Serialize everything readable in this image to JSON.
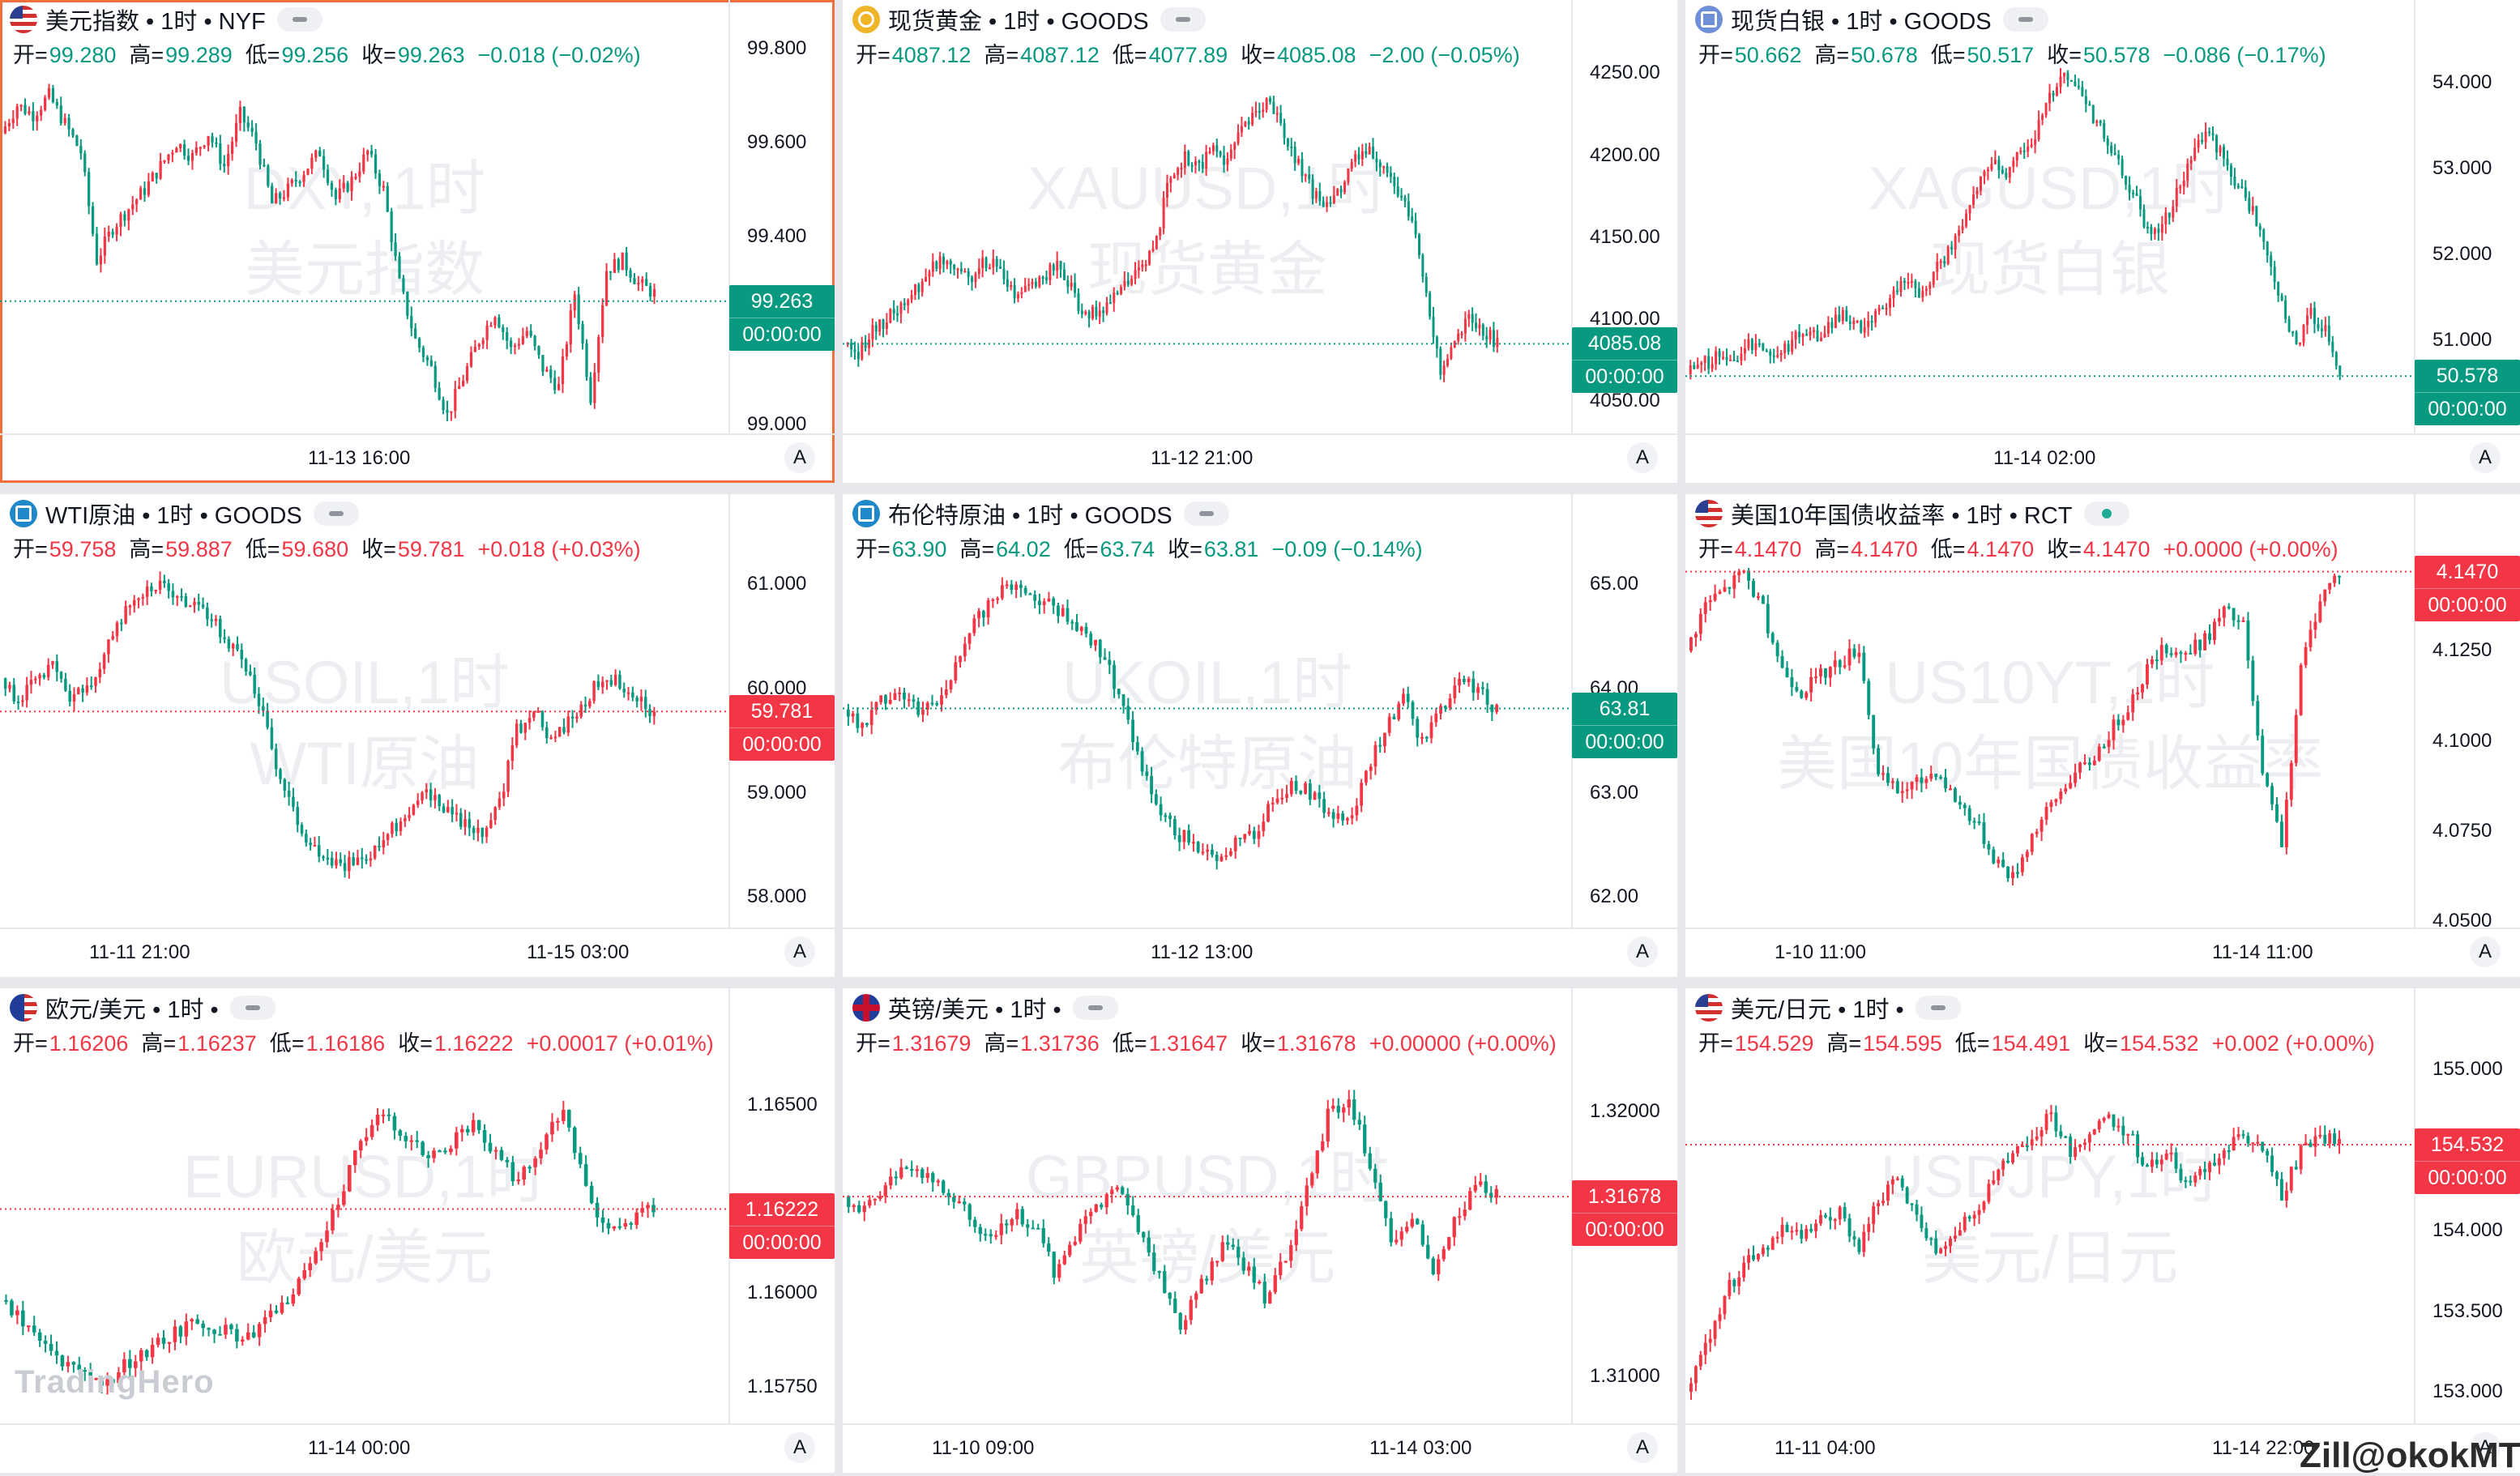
{
  "colors": {
    "up": "#f23645",
    "down": "#089981",
    "text": "#131722",
    "accent": "#f0703b"
  },
  "labels": {
    "open": "开=",
    "high": "高=",
    "low": "低=",
    "close": "收=",
    "reset_axis": "A"
  },
  "logo": "TradingHero",
  "credit": "Zill@okokMT",
  "panels": [
    {
      "id": "dxy",
      "active": true,
      "title": "美元指数 • 1时 • NYF",
      "icon": "flag-us",
      "status": "dash",
      "open": "99.280",
      "high": "99.289",
      "low": "99.256",
      "close": "99.263",
      "change": "−0.018 (−0.02%)",
      "dir": "down",
      "watermark": [
        "DXY, 1时",
        "美元指数"
      ],
      "y_ticks": [
        "99.800",
        "99.600",
        "99.400",
        "99.000"
      ],
      "y_tick_values": [
        99.8,
        99.6,
        99.4,
        99.0
      ],
      "y_range": [
        98.98,
        99.8
      ],
      "price_badge": "99.263",
      "countdown": "00:00:00",
      "x_labels": [
        "11-13 16:00"
      ],
      "path": [
        99.62,
        99.68,
        99.66,
        99.7,
        99.64,
        99.58,
        99.35,
        99.42,
        99.46,
        99.5,
        99.55,
        99.6,
        99.57,
        99.62,
        99.55,
        99.66,
        99.6,
        99.47,
        99.5,
        99.54,
        99.58,
        99.48,
        99.52,
        99.58,
        99.5,
        99.3,
        99.18,
        99.12,
        99.02,
        99.1,
        99.18,
        99.24,
        99.16,
        99.2,
        99.12,
        99.08,
        99.28,
        99.06,
        99.33,
        99.35,
        99.3,
        99.28
      ]
    },
    {
      "id": "xau",
      "active": false,
      "title": "现货黄金 • 1时 • GOODS",
      "icon": "gold",
      "status": "dash",
      "open": "4087.12",
      "high": "4087.12",
      "low": "4077.89",
      "close": "4085.08",
      "change": "−2.00 (−0.05%)",
      "dir": "down",
      "watermark": [
        "XAUUSD,1时",
        "现货黄金"
      ],
      "y_ticks": [
        "4250.00",
        "4200.00",
        "4150.00",
        "4100.00",
        "4050.00"
      ],
      "y_tick_values": [
        4250,
        4200,
        4150,
        4100,
        4050
      ],
      "y_range": [
        4030,
        4265
      ],
      "price_badge": "4085.08",
      "countdown": "00:00:00",
      "x_labels": [
        "11-12 21:00"
      ],
      "path": [
        4085,
        4080,
        4092,
        4100,
        4108,
        4118,
        4130,
        4138,
        4132,
        4126,
        4136,
        4130,
        4112,
        4120,
        4126,
        4134,
        4118,
        4100,
        4106,
        4112,
        4124,
        4130,
        4150,
        4190,
        4198,
        4192,
        4205,
        4196,
        4214,
        4224,
        4236,
        4210,
        4196,
        4176,
        4168,
        4180,
        4196,
        4202,
        4194,
        4176,
        4160,
        4118,
        4066,
        4084,
        4100,
        4092,
        4086
      ]
    },
    {
      "id": "xag",
      "active": false,
      "title": "现货白银 • 1时 • GOODS",
      "icon": "silver",
      "status": "dash",
      "open": "50.662",
      "high": "50.678",
      "low": "50.517",
      "close": "50.578",
      "change": "−0.086 (−0.17%)",
      "dir": "down",
      "watermark": [
        "XAGUSD,1时",
        "现货白银"
      ],
      "y_ticks": [
        "54.000",
        "53.000",
        "52.000",
        "51.000"
      ],
      "y_tick_values": [
        54,
        53,
        52,
        51
      ],
      "y_range": [
        49.9,
        54.4
      ],
      "price_badge": "50.578",
      "countdown": "00:00:00",
      "x_labels": [
        "11-14 02:00"
      ],
      "path": [
        50.6,
        50.7,
        50.8,
        50.75,
        50.9,
        51.0,
        50.8,
        50.95,
        51.1,
        51.05,
        51.2,
        51.3,
        51.1,
        51.25,
        51.5,
        51.7,
        51.5,
        51.8,
        52.0,
        52.3,
        52.8,
        53.1,
        52.9,
        53.2,
        53.4,
        53.8,
        54.1,
        53.9,
        53.6,
        53.3,
        53.0,
        52.6,
        52.2,
        52.4,
        52.8,
        53.2,
        53.4,
        53.1,
        52.8,
        52.5,
        52.0,
        51.4,
        50.9,
        51.3,
        51.1,
        50.6
      ]
    },
    {
      "id": "wti",
      "active": false,
      "title": "WTI原油 • 1时 • GOODS",
      "icon": "oil",
      "status": "dash",
      "open": "59.758",
      "high": "59.887",
      "low": "59.680",
      "close": "59.781",
      "change": "+0.018 (+0.03%)",
      "dir": "up",
      "watermark": [
        "USOIL,1时",
        "WTI原油"
      ],
      "y_ticks": [
        "61.000",
        "60.000",
        "59.000",
        "58.000"
      ],
      "y_tick_values": [
        61,
        60,
        59,
        58
      ],
      "y_range": [
        57.7,
        61.4
      ],
      "price_badge": "59.781",
      "countdown": "00:00:00",
      "x_labels": [
        "11-11 21:00",
        "11-15 03:00"
      ],
      "path": [
        60.1,
        59.9,
        60.05,
        60.2,
        59.9,
        60.0,
        60.3,
        60.7,
        60.9,
        61.0,
        60.9,
        60.8,
        60.7,
        60.5,
        60.3,
        59.9,
        59.3,
        58.8,
        58.5,
        58.4,
        58.3,
        58.35,
        58.5,
        58.7,
        58.9,
        59.0,
        58.85,
        58.7,
        58.6,
        58.9,
        59.6,
        59.8,
        59.5,
        59.7,
        59.9,
        60.1,
        60.05,
        59.9,
        59.78
      ]
    },
    {
      "id": "ukoil",
      "active": false,
      "title": "布伦特原油 • 1时 • GOODS",
      "icon": "oil",
      "status": "dash",
      "open": "63.90",
      "high": "64.02",
      "low": "63.74",
      "close": "63.81",
      "change": "−0.09 (−0.14%)",
      "dir": "down",
      "watermark": [
        "UKOIL,1时",
        "布伦特原油"
      ],
      "y_ticks": [
        "65.00",
        "64.00",
        "63.00",
        "62.00"
      ],
      "y_tick_values": [
        65,
        64,
        63,
        62
      ],
      "y_range": [
        61.7,
        65.4
      ],
      "price_badge": "63.81",
      "countdown": "00:00:00",
      "x_labels": [
        "11-12 13:00"
      ],
      "path": [
        63.8,
        63.6,
        63.9,
        64.0,
        63.8,
        63.9,
        64.2,
        64.6,
        64.9,
        65.0,
        64.9,
        64.8,
        64.7,
        64.5,
        64.3,
        63.8,
        63.2,
        62.8,
        62.6,
        62.5,
        62.4,
        62.5,
        62.6,
        62.9,
        63.1,
        63.0,
        62.8,
        62.7,
        63.2,
        63.6,
        63.9,
        63.5,
        63.8,
        64.1,
        64.0,
        63.8
      ]
    },
    {
      "id": "us10y",
      "active": false,
      "title": "美国10年国债收益率 • 1时 • RCT",
      "icon": "flag-us",
      "status": "live",
      "open": "4.1470",
      "high": "4.1470",
      "low": "4.1470",
      "close": "4.1470",
      "change": "+0.0000 (+0.00%)",
      "dir": "up",
      "watermark": [
        "US10YT,1时",
        "美国10年国债收益率"
      ],
      "y_ticks": [
        "4.1250",
        "4.1000",
        "4.0750",
        "4.0500"
      ],
      "y_tick_values": [
        4.125,
        4.1,
        4.075,
        4.05
      ],
      "y_range": [
        4.048,
        4.155
      ],
      "price_badge": "4.1470",
      "countdown": "00:00:00",
      "x_labels": [
        "1-10 11:00",
        "11-14 11:00"
      ],
      "path": [
        4.125,
        4.138,
        4.142,
        4.147,
        4.136,
        4.12,
        4.114,
        4.118,
        4.122,
        4.126,
        4.09,
        4.086,
        4.088,
        4.092,
        4.084,
        4.078,
        4.068,
        4.062,
        4.074,
        4.082,
        4.09,
        4.094,
        4.102,
        4.11,
        4.12,
        4.126,
        4.124,
        4.128,
        4.136,
        4.132,
        4.09,
        4.072,
        4.12,
        4.14,
        4.147
      ]
    },
    {
      "id": "eurusd",
      "active": false,
      "title": "欧元/美元 • 1时 •",
      "icon": "flag-eu",
      "status": "dash",
      "open": "1.16206",
      "high": "1.16237",
      "low": "1.16186",
      "close": "1.16222",
      "change": "+0.00017 (+0.01%)",
      "dir": "up",
      "watermark": [
        "EURUSD,1时",
        "欧元/美元"
      ],
      "y_ticks": [
        "1.16500",
        "1.16000",
        "1.15750"
      ],
      "y_tick_values": [
        1.165,
        1.16,
        1.1575
      ],
      "y_range": [
        1.1565,
        1.1668
      ],
      "price_badge": "1.16222",
      "countdown": "00:00:00",
      "x_labels": [
        "11-14 00:00"
      ],
      "path": [
        1.1598,
        1.1592,
        1.1586,
        1.158,
        1.1576,
        1.1578,
        1.1583,
        1.1586,
        1.159,
        1.1592,
        1.159,
        1.1588,
        1.1594,
        1.16,
        1.1612,
        1.1625,
        1.164,
        1.1648,
        1.1642,
        1.1636,
        1.164,
        1.1645,
        1.1636,
        1.163,
        1.164,
        1.165,
        1.1628,
        1.1615,
        1.162,
        1.1622
      ]
    },
    {
      "id": "gbpusd",
      "active": false,
      "title": "英镑/美元 • 1时 •",
      "icon": "flag-gb",
      "status": "dash",
      "open": "1.31679",
      "high": "1.31736",
      "low": "1.31647",
      "close": "1.31678",
      "change": "+0.00000 (+0.00%)",
      "dir": "up",
      "watermark": [
        "GBPUSD,1时",
        "英镑/美元"
      ],
      "y_ticks": [
        "1.32000",
        "1.31000"
      ],
      "y_tick_values": [
        1.32,
        1.31
      ],
      "y_range": [
        1.3082,
        1.3228
      ],
      "price_badge": "1.31678",
      "countdown": "00:00:00",
      "x_labels": [
        "11-10 09:00",
        "11-14 03:00"
      ],
      "path": [
        1.3168,
        1.3162,
        1.3172,
        1.318,
        1.3176,
        1.3168,
        1.316,
        1.315,
        1.3162,
        1.3158,
        1.314,
        1.3152,
        1.3164,
        1.317,
        1.3156,
        1.3138,
        1.312,
        1.3135,
        1.315,
        1.3142,
        1.313,
        1.3146,
        1.317,
        1.3198,
        1.3206,
        1.318,
        1.315,
        1.3162,
        1.314,
        1.3158,
        1.3172,
        1.3168
      ]
    },
    {
      "id": "usdjpy",
      "active": false,
      "title": "美元/日元 • 1时 •",
      "icon": "flag-us",
      "status": "dash",
      "open": "154.529",
      "high": "154.595",
      "low": "154.491",
      "close": "154.532",
      "change": "+0.002 (+0.00%)",
      "dir": "up",
      "watermark": [
        "USDJPY,1时",
        "美元/日元"
      ],
      "y_ticks": [
        "155.000",
        "154.000",
        "153.500",
        "153.000"
      ],
      "y_tick_values": [
        155,
        154,
        153.5,
        153
      ],
      "y_range": [
        152.8,
        155.2
      ],
      "price_badge": "154.532",
      "countdown": "00:00:00",
      "x_labels": [
        "11-11 04:00",
        "11-14 22:00"
      ],
      "path": [
        153.0,
        153.3,
        153.6,
        153.8,
        153.9,
        154.0,
        153.95,
        154.05,
        154.1,
        153.9,
        154.2,
        154.3,
        154.1,
        153.9,
        154.0,
        154.1,
        154.3,
        154.5,
        154.6,
        154.7,
        154.5,
        154.6,
        154.7,
        154.6,
        154.4,
        154.5,
        154.3,
        154.4,
        154.5,
        154.6,
        154.5,
        154.2,
        154.5,
        154.6,
        154.53
      ]
    }
  ]
}
